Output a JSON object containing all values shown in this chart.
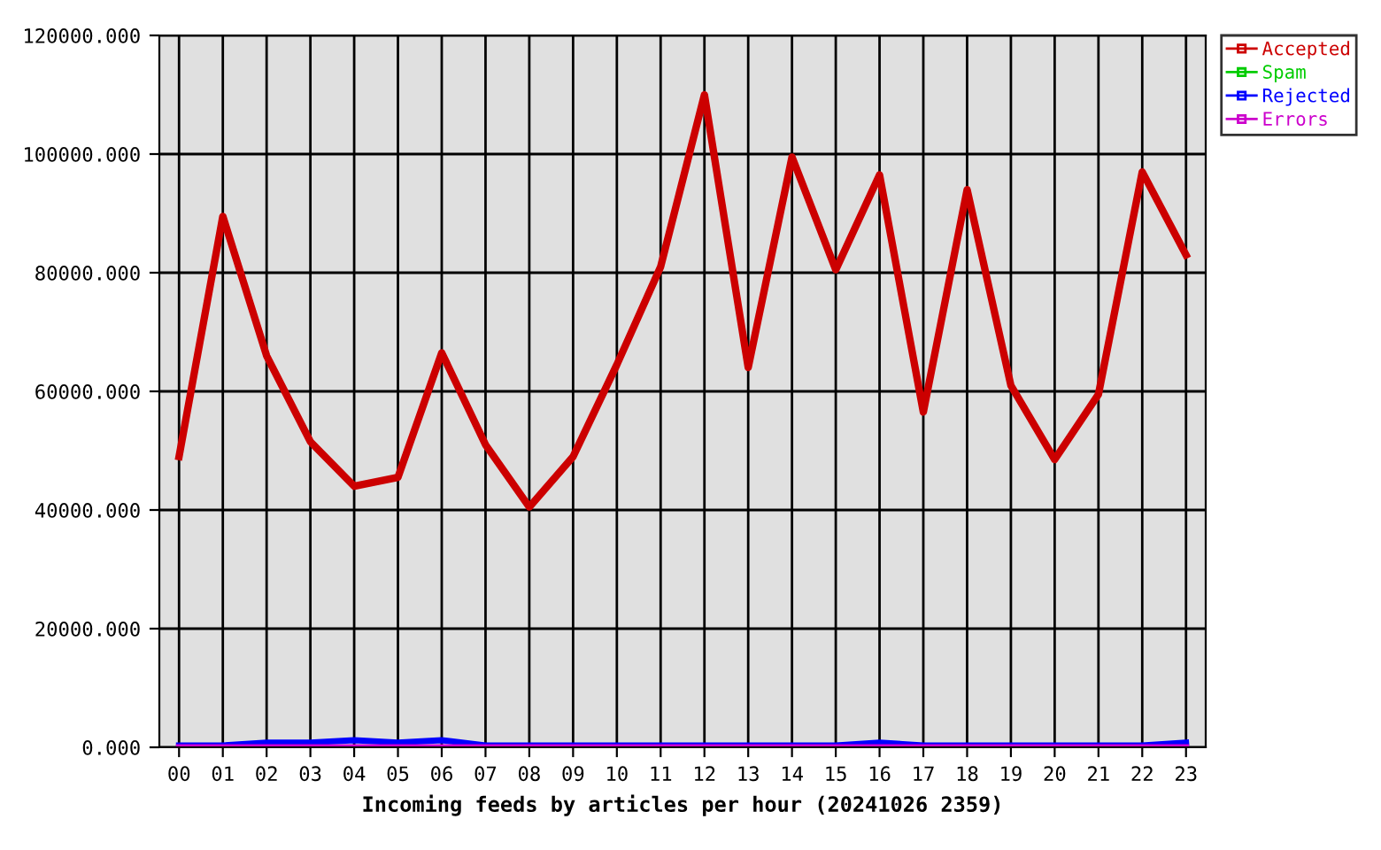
{
  "chart_data": {
    "type": "line",
    "xlabel": "Incoming feeds by articles per hour (20241026 2359)",
    "categories": [
      "00",
      "01",
      "02",
      "03",
      "04",
      "05",
      "06",
      "07",
      "08",
      "09",
      "10",
      "11",
      "12",
      "13",
      "14",
      "15",
      "16",
      "17",
      "18",
      "19",
      "20",
      "21",
      "22",
      "23"
    ],
    "series": [
      {
        "name": "Accepted",
        "color": "#cc0000",
        "values": [
          49000,
          89500,
          66000,
          51500,
          44000,
          45500,
          66500,
          51000,
          40500,
          49000,
          64500,
          81000,
          110000,
          64000,
          99500,
          80500,
          96500,
          56500,
          94000,
          61000,
          48500,
          59500,
          97000,
          83000
        ]
      },
      {
        "name": "Spam",
        "color": "#00cc00",
        "values": [
          null,
          null,
          null,
          null,
          null,
          null,
          null,
          null,
          null,
          null,
          null,
          null,
          null,
          null,
          null,
          null,
          null,
          null,
          null,
          null,
          null,
          null,
          null,
          null
        ]
      },
      {
        "name": "Rejected",
        "color": "#0000ff",
        "values": [
          300,
          300,
          800,
          800,
          1200,
          800,
          1200,
          300,
          300,
          300,
          300,
          300,
          300,
          300,
          300,
          300,
          800,
          300,
          300,
          300,
          300,
          300,
          300,
          800
        ]
      },
      {
        "name": "Errors",
        "color": "#cc00cc",
        "values": [
          0,
          0,
          0,
          0,
          0,
          0,
          0,
          0,
          0,
          0,
          0,
          0,
          0,
          0,
          0,
          0,
          0,
          0,
          0,
          0,
          0,
          0,
          0,
          0
        ]
      }
    ],
    "ylim": [
      0,
      120000
    ],
    "yticks": [
      {
        "value": 0,
        "label": "0.000"
      },
      {
        "value": 20000,
        "label": "20000.000"
      },
      {
        "value": 40000,
        "label": "40000.000"
      },
      {
        "value": 60000,
        "label": "60000.000"
      },
      {
        "value": 80000,
        "label": "80000.000"
      },
      {
        "value": 100000,
        "label": "100000.000"
      },
      {
        "value": 120000,
        "label": "120000.000"
      }
    ],
    "grid": true,
    "legend": "top right"
  }
}
